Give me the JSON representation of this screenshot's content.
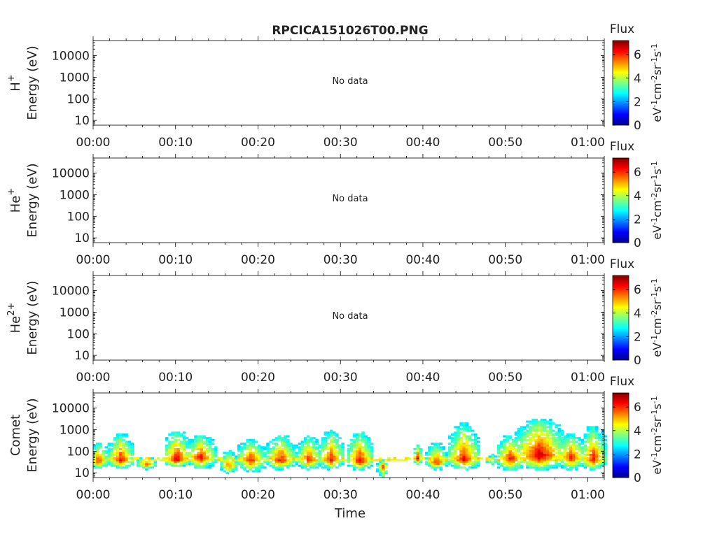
{
  "title": "RPCICA151026T00.PNG",
  "xlabel": "Time",
  "x_ticks": [
    "00:00",
    "00:10",
    "00:20",
    "00:30",
    "00:40",
    "00:50",
    "01:00"
  ],
  "y_ticks": [
    "10",
    "100",
    "1000",
    "10000"
  ],
  "colorbar": {
    "title": "Flux",
    "ticks": [
      "0",
      "2",
      "4",
      "6"
    ],
    "unit": {
      "a": "eV",
      "b": "-1",
      "c": "cm",
      "d": "-2",
      "e": "sr",
      "f": "-1",
      "g": "s",
      "h": "-1"
    },
    "range": [
      0,
      7.2
    ],
    "colormap": "jet"
  },
  "no_data_text": "No data",
  "panels": [
    {
      "species": {
        "base": "H",
        "sup": "+"
      },
      "ylabel": "Energy (eV)",
      "has_data": false
    },
    {
      "species": {
        "base": "He",
        "sup": "+"
      },
      "ylabel": "Energy (eV)",
      "has_data": false
    },
    {
      "species": {
        "base": "He",
        "sup": "2+"
      },
      "ylabel": "Energy (eV)",
      "has_data": false
    },
    {
      "species": {
        "base": "Comet",
        "sup": ""
      },
      "ylabel": "Energy (eV)",
      "has_data": true
    }
  ],
  "chart_data": {
    "type": "heatmap",
    "title": "RPCICA151026T00.PNG",
    "xlabel": "Time",
    "x_unit": "minutes after 00:00",
    "xlim": [
      0,
      62
    ],
    "ylabel": "Energy (eV)",
    "yscale": "log",
    "ylim": [
      6,
      50000
    ],
    "color_label": "Flux",
    "color_range": [
      0,
      7.2
    ],
    "bursts": [
      {
        "t": 0.5,
        "w": 1.2,
        "e_lo": 15,
        "e_peak": 35,
        "e_hi": 250,
        "f": 6.5
      },
      {
        "t": 3.2,
        "w": 1.6,
        "e_lo": 15,
        "e_peak": 40,
        "e_hi": 700,
        "f": 6.7
      },
      {
        "t": 6.3,
        "w": 1.2,
        "e_lo": 14,
        "e_peak": 25,
        "e_hi": 60,
        "f": 6.2
      },
      {
        "t": 10.0,
        "w": 1.6,
        "e_lo": 18,
        "e_peak": 40,
        "e_hi": 900,
        "f": 7.0
      },
      {
        "t": 12.9,
        "w": 1.8,
        "e_lo": 15,
        "e_peak": 50,
        "e_hi": 600,
        "f": 6.8
      },
      {
        "t": 16.3,
        "w": 1.1,
        "e_lo": 8,
        "e_peak": 22,
        "e_hi": 120,
        "f": 6.0
      },
      {
        "t": 19.0,
        "w": 1.8,
        "e_lo": 10,
        "e_peak": 40,
        "e_hi": 350,
        "f": 6.6
      },
      {
        "t": 22.6,
        "w": 1.8,
        "e_lo": 14,
        "e_peak": 38,
        "e_hi": 600,
        "f": 6.7
      },
      {
        "t": 26.0,
        "w": 1.6,
        "e_lo": 14,
        "e_peak": 40,
        "e_hi": 500,
        "f": 6.5
      },
      {
        "t": 28.7,
        "w": 1.6,
        "e_lo": 14,
        "e_peak": 40,
        "e_hi": 900,
        "f": 6.6
      },
      {
        "t": 32.2,
        "w": 1.6,
        "e_lo": 14,
        "e_peak": 35,
        "e_hi": 800,
        "f": 6.8
      },
      {
        "t": 35.0,
        "w": 0.7,
        "e_lo": 6,
        "e_peak": 20,
        "e_hi": 40,
        "f": 6.4
      },
      {
        "t": 39.2,
        "w": 0.5,
        "e_lo": 25,
        "e_peak": 45,
        "e_hi": 220,
        "f": 6.9
      },
      {
        "t": 41.5,
        "w": 1.3,
        "e_lo": 14,
        "e_peak": 30,
        "e_hi": 250,
        "f": 6.5
      },
      {
        "t": 44.8,
        "w": 1.9,
        "e_lo": 14,
        "e_peak": 40,
        "e_hi": 2000,
        "f": 6.8
      },
      {
        "t": 48.3,
        "w": 1.0,
        "e_lo": 20,
        "e_peak": 35,
        "e_hi": 120,
        "f": 4.6
      },
      {
        "t": 50.5,
        "w": 1.8,
        "e_lo": 12,
        "e_peak": 45,
        "e_hi": 600,
        "f": 6.6
      },
      {
        "t": 54.0,
        "w": 3.0,
        "e_lo": 14,
        "e_peak": 60,
        "e_hi": 3500,
        "f": 7.2
      },
      {
        "t": 57.8,
        "w": 1.8,
        "e_lo": 14,
        "e_peak": 50,
        "e_hi": 700,
        "f": 6.6
      },
      {
        "t": 60.5,
        "w": 1.6,
        "e_lo": 14,
        "e_peak": 40,
        "e_hi": 1500,
        "f": 6.7
      }
    ],
    "band": {
      "t0": 0,
      "t1": 61.5,
      "e_lo": 35,
      "e_hi": 55,
      "f": 4.0
    }
  }
}
